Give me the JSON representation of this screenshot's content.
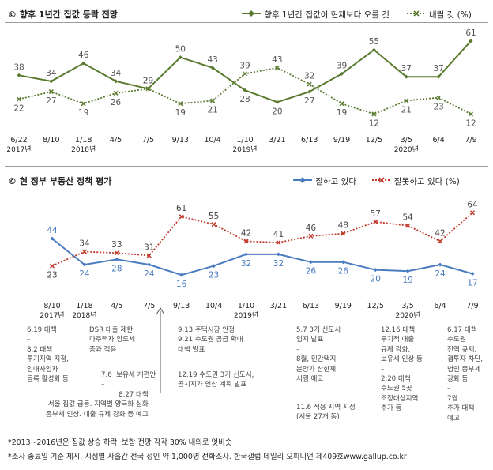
{
  "chart_data": [
    {
      "type": "line",
      "title": "향후 1년간 집값 등락 전망",
      "categories": [
        "6/22",
        "8/10",
        "1/18",
        "4/5",
        "7/5",
        "9/13",
        "10/4",
        "1/10",
        "3/21",
        "6/13",
        "9/19",
        "12/5",
        "3/5",
        "6/4",
        "7/9"
      ],
      "year_labels": [
        {
          "category": "6/22",
          "text": "2017년"
        },
        {
          "category": "1/18",
          "text": "2018년"
        },
        {
          "category": "1/10",
          "text": "2019년"
        },
        {
          "category": "3/5",
          "text": "2020년"
        }
      ],
      "series": [
        {
          "name": "향후 1년간 집값이 현재보다 오를 것",
          "color": "#5a7a30",
          "style": "solid",
          "values": [
            38,
            34,
            46,
            34,
            29,
            50,
            43,
            28,
            20,
            27,
            39,
            55,
            37,
            37,
            61
          ]
        },
        {
          "name": "내릴 것 (%)",
          "color": "#5a7a30",
          "style": "dotted",
          "values": [
            22,
            27,
            19,
            26,
            29,
            19,
            21,
            39,
            43,
            32,
            19,
            12,
            21,
            23,
            12
          ]
        }
      ],
      "ylim": [
        8,
        63
      ],
      "grid": false,
      "legend": "top-right"
    },
    {
      "type": "line",
      "title": "현 정부 부동산 정책 평가",
      "categories": [
        "8/10",
        "1/18",
        "4/5",
        "7/5",
        "9/13",
        "10/4",
        "1/10",
        "3/21",
        "6/13",
        "9/19",
        "12/5",
        "3/5",
        "6/4",
        "7/9"
      ],
      "year_labels": [
        {
          "category": "8/10",
          "text": "2017년"
        },
        {
          "category": "1/18",
          "text": "2018년"
        },
        {
          "category": "1/10",
          "text": "2019년"
        },
        {
          "category": "3/5",
          "text": "2020년"
        }
      ],
      "series": [
        {
          "name": "잘하고 있다",
          "color": "#4a7cc0",
          "style": "solid",
          "values": [
            44,
            24,
            28,
            24,
            16,
            23,
            32,
            32,
            26,
            26,
            20,
            19,
            24,
            17
          ]
        },
        {
          "name": "잘못하고 있다 (%)",
          "color": "#c0392b",
          "style": "dotted",
          "values": [
            23,
            34,
            33,
            31,
            61,
            55,
            42,
            41,
            46,
            48,
            57,
            54,
            42,
            64
          ]
        }
      ],
      "ylim": [
        10,
        66
      ],
      "grid": false,
      "legend": "top-right",
      "annotations": [
        "6.19 대책\n–\n8.2 대책\n투기지역 지정,\n임대사업자\n등록 활성화 등",
        "DSR 대출 제한\n다주택자 양도세\n중과 적용",
        "7.6  보유세 개편안\n–",
        "8.27 대책\n서울 집값 급등. 지역별 양극화 심화\n종부세 인상. 대출 규제 강화 등 예고",
        "9.13 주택시장 안정\n9.21 수도권 공급 확대\n대책 발표",
        "12.19 수도권 3기 신도시,\n공시지가 인상 계획 발표",
        "5.7 3기 신도시\n입지 발표\n–\n8월, 민간택지\n분양가 상한제\n시행 예고",
        "11.6 적용 지역 지정\n(서울 27개 동)",
        "12.16 대책\n투기적 대출\n규제 강화,\n보유세 인상 등\n–\n2.20 대책\n수도권 5곳\n조정대상지역\n추가 등",
        "6.17 대책\n수도권\n전역 규제,\n갭투자 차단,\n법인 종부세\n강화 등\n–\n7월\n추가 대책\n예고"
      ]
    }
  ],
  "footnotes": [
    "*2013~2016년은 집값 상승 하락 ·보합 전망 각각 30% 내외로 엇비슷",
    "*조사 종료일 기준 제시. 시점별 사흘간 전국 성인 약 1,000명 전화조사. 한국갤럽 데일리 오피니언 제409호www.gallup.co.kr"
  ],
  "legend_text": {
    "p1_solid": "향후 1년간 집값이 현재보다 오를 것",
    "p1_dotted": "내릴 것 (%)",
    "p2_solid": "잘하고 있다",
    "p2_dotted": "잘못하고 있다 (%)"
  },
  "colors": {
    "p1_line": "#5a7a30",
    "p2_good": "#4a7cc0",
    "p2_bad": "#c0392b",
    "label_text": "#555555"
  },
  "icons": {
    "panel_marker": "copyright-circle-icon",
    "annotation_pointer": "up-arrow-icon"
  }
}
